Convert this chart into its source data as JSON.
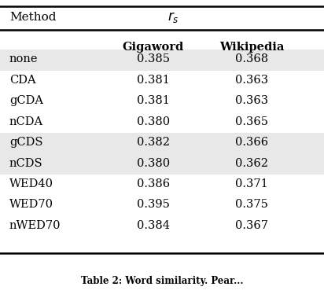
{
  "header_row": [
    "Method",
    "r_s"
  ],
  "subheader": [
    "",
    "Gigaword",
    "Wikipedia"
  ],
  "rows": [
    [
      "none",
      "0.385",
      "0.368"
    ],
    [
      "CDA",
      "0.381",
      "0.363"
    ],
    [
      "gCDA",
      "0.381",
      "0.363"
    ],
    [
      "nCDA",
      "0.380",
      "0.365"
    ],
    [
      "gCDS",
      "0.382",
      "0.366"
    ],
    [
      "nCDS",
      "0.380",
      "0.362"
    ],
    [
      "WED40",
      "0.386",
      "0.371"
    ],
    [
      "WED70",
      "0.395",
      "0.375"
    ],
    [
      "nWED70",
      "0.384",
      "0.367"
    ]
  ],
  "shaded_rows": [
    0,
    4,
    5
  ],
  "shade_color": "#e8e8e8",
  "bg_color": "#ffffff",
  "font_size": 10.5,
  "header_font_size": 11,
  "caption": "Table 2: Word similarity. Pear..."
}
